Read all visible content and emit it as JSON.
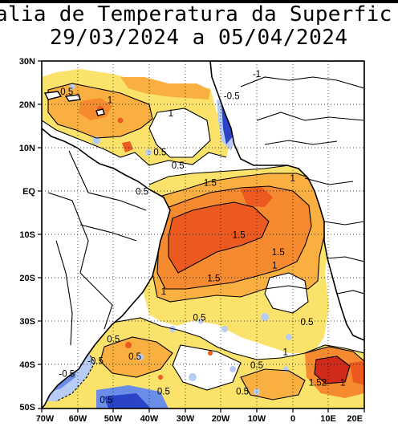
{
  "title": {
    "line1": "alia de Temperatura da Superficie da",
    "line2": "29/03/2024 a 05/04/2024"
  },
  "axes": {
    "lat_ticks": [
      "30N",
      "20N",
      "10N",
      "EQ",
      "10S",
      "20S",
      "30S",
      "40S",
      "50S"
    ],
    "lon_ticks": [
      "70W",
      "60W",
      "50W",
      "40W",
      "30W",
      "20W",
      "10W",
      "0",
      "10E",
      "20E"
    ],
    "lon_range": [
      -70,
      20
    ],
    "lat_range": [
      -50,
      30
    ],
    "grid": "dotted every 10 degrees"
  },
  "contour_labels": [
    {
      "text": "0.5",
      "lon": -63,
      "lat": 23
    },
    {
      "text": "1",
      "lon": -51,
      "lat": 21
    },
    {
      "text": "1",
      "lon": -34,
      "lat": 18
    },
    {
      "text": "-1",
      "lon": -10,
      "lat": 27
    },
    {
      "text": "-0.5",
      "lon": -17,
      "lat": 22
    },
    {
      "text": "0.5",
      "lon": -37,
      "lat": 9
    },
    {
      "text": "0.5",
      "lon": -32,
      "lat": 6
    },
    {
      "text": "1.5",
      "lon": -23,
      "lat": 2
    },
    {
      "text": "1",
      "lon": 0,
      "lat": 3
    },
    {
      "text": "0.5",
      "lon": -42,
      "lat": 0
    },
    {
      "text": "1.5",
      "lon": -15,
      "lat": -10
    },
    {
      "text": "1.5",
      "lon": -4,
      "lat": -14
    },
    {
      "text": "1",
      "lon": -5,
      "lat": -17
    },
    {
      "text": "1.5",
      "lon": -22,
      "lat": -20
    },
    {
      "text": "1",
      "lon": -36,
      "lat": -23
    },
    {
      "text": "0.5",
      "lon": -26,
      "lat": -29
    },
    {
      "text": "0.5",
      "lon": 4,
      "lat": -30
    },
    {
      "text": "0.5",
      "lon": -50,
      "lat": -34
    },
    {
      "text": "0.5",
      "lon": -44,
      "lat": -38
    },
    {
      "text": "-0.5",
      "lon": -55,
      "lat": -39
    },
    {
      "text": "0.5",
      "lon": -10,
      "lat": -40
    },
    {
      "text": "1",
      "lon": -2,
      "lat": -37
    },
    {
      "text": "-0.5",
      "lon": -63,
      "lat": -42
    },
    {
      "text": "0.5",
      "lon": -14,
      "lat": -46
    },
    {
      "text": "1.52",
      "lon": 7,
      "lat": -44
    },
    {
      "text": "1",
      "lon": 14,
      "lat": -44
    },
    {
      "text": "0.5",
      "lon": -52,
      "lat": -48
    },
    {
      "text": "0.5",
      "lon": -36,
      "lat": -46
    }
  ],
  "colors": {
    "warm_0_5": "#fbe26a",
    "warm_1": "#f9b040",
    "warm_1_5": "#f58a2f",
    "warm_2": "#ec5a20",
    "warm_3": "#cf2a1a",
    "cold_0_5": "#b8cdf5",
    "cold_1": "#6a8ee8",
    "cold_2": "#2a44c8"
  }
}
